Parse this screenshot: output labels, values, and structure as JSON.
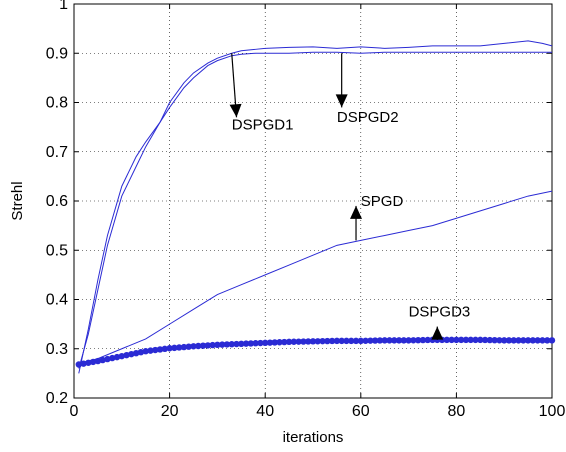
{
  "chart_data": {
    "type": "line",
    "title": "",
    "xlabel": "iterations",
    "ylabel": "Strehl",
    "xlim": [
      0,
      100
    ],
    "ylim": [
      0.2,
      1
    ],
    "xticks": [
      "0",
      "20",
      "40",
      "60",
      "80",
      "100"
    ],
    "yticks": [
      "0.2",
      "0.3",
      "0.4",
      "0.5",
      "0.6",
      "0.7",
      "0.8",
      "0.9",
      "1"
    ],
    "grid": "dotted",
    "series": [
      {
        "name": "DSPGD1",
        "color": "#2b2bd4",
        "marker": "none",
        "x": [
          1,
          3,
          5,
          7,
          10,
          13,
          15,
          18,
          20,
          23,
          25,
          28,
          30,
          33,
          35,
          38,
          40,
          45,
          50,
          55,
          60,
          65,
          70,
          75,
          80,
          85,
          90,
          95,
          98,
          100
        ],
        "y": [
          0.25,
          0.34,
          0.44,
          0.53,
          0.63,
          0.69,
          0.72,
          0.76,
          0.8,
          0.84,
          0.86,
          0.88,
          0.89,
          0.9,
          0.905,
          0.908,
          0.91,
          0.912,
          0.913,
          0.91,
          0.913,
          0.91,
          0.912,
          0.915,
          0.915,
          0.915,
          0.92,
          0.925,
          0.92,
          0.915
        ]
      },
      {
        "name": "DSPGD2",
        "color": "#2b2bd4",
        "marker": "none",
        "x": [
          1,
          3,
          5,
          7,
          10,
          13,
          15,
          18,
          20,
          23,
          25,
          28,
          30,
          33,
          35,
          38,
          40,
          45,
          50,
          55,
          60,
          65,
          70,
          75,
          80,
          85,
          90,
          95,
          100
        ],
        "y": [
          0.26,
          0.33,
          0.42,
          0.51,
          0.61,
          0.67,
          0.71,
          0.76,
          0.79,
          0.83,
          0.85,
          0.875,
          0.885,
          0.895,
          0.898,
          0.9,
          0.9,
          0.9,
          0.902,
          0.902,
          0.9,
          0.902,
          0.902,
          0.902,
          0.902,
          0.902,
          0.902,
          0.902,
          0.902
        ]
      },
      {
        "name": "SPGD",
        "color": "#2b2bd4",
        "marker": "none",
        "x": [
          1,
          5,
          10,
          15,
          20,
          25,
          30,
          35,
          40,
          45,
          50,
          55,
          60,
          65,
          70,
          75,
          80,
          85,
          90,
          95,
          100
        ],
        "y": [
          0.27,
          0.28,
          0.3,
          0.32,
          0.35,
          0.38,
          0.41,
          0.43,
          0.45,
          0.47,
          0.49,
          0.51,
          0.52,
          0.53,
          0.54,
          0.55,
          0.565,
          0.58,
          0.595,
          0.61,
          0.62
        ]
      },
      {
        "name": "DSPGD3",
        "color": "#2b2bd4",
        "marker": "dot",
        "x": [
          1,
          5,
          10,
          15,
          20,
          25,
          30,
          35,
          40,
          45,
          50,
          55,
          60,
          65,
          70,
          75,
          80,
          85,
          90,
          95,
          100
        ],
        "y": [
          0.268,
          0.275,
          0.285,
          0.295,
          0.301,
          0.305,
          0.308,
          0.31,
          0.312,
          0.314,
          0.315,
          0.316,
          0.316,
          0.317,
          0.317,
          0.318,
          0.318,
          0.318,
          0.317,
          0.317,
          0.317
        ]
      }
    ],
    "annotations": [
      {
        "text": "DSPGD1",
        "x": 33,
        "y": 0.745,
        "arrow_from": [
          33,
          0.9
        ],
        "arrow_to": [
          34,
          0.77
        ]
      },
      {
        "text": "DSPGD2",
        "x": 55,
        "y": 0.76,
        "arrow_from": [
          56,
          0.9
        ],
        "arrow_to": [
          56,
          0.79
        ]
      },
      {
        "text": "SPGD",
        "x": 60,
        "y": 0.59,
        "arrow_from": [
          59,
          0.52
        ],
        "arrow_to": [
          59,
          0.59
        ]
      },
      {
        "text": "DSPGD3",
        "x": 70,
        "y": 0.365,
        "arrow_from": [
          76,
          0.318
        ],
        "arrow_to": [
          76,
          0.345
        ]
      }
    ]
  }
}
